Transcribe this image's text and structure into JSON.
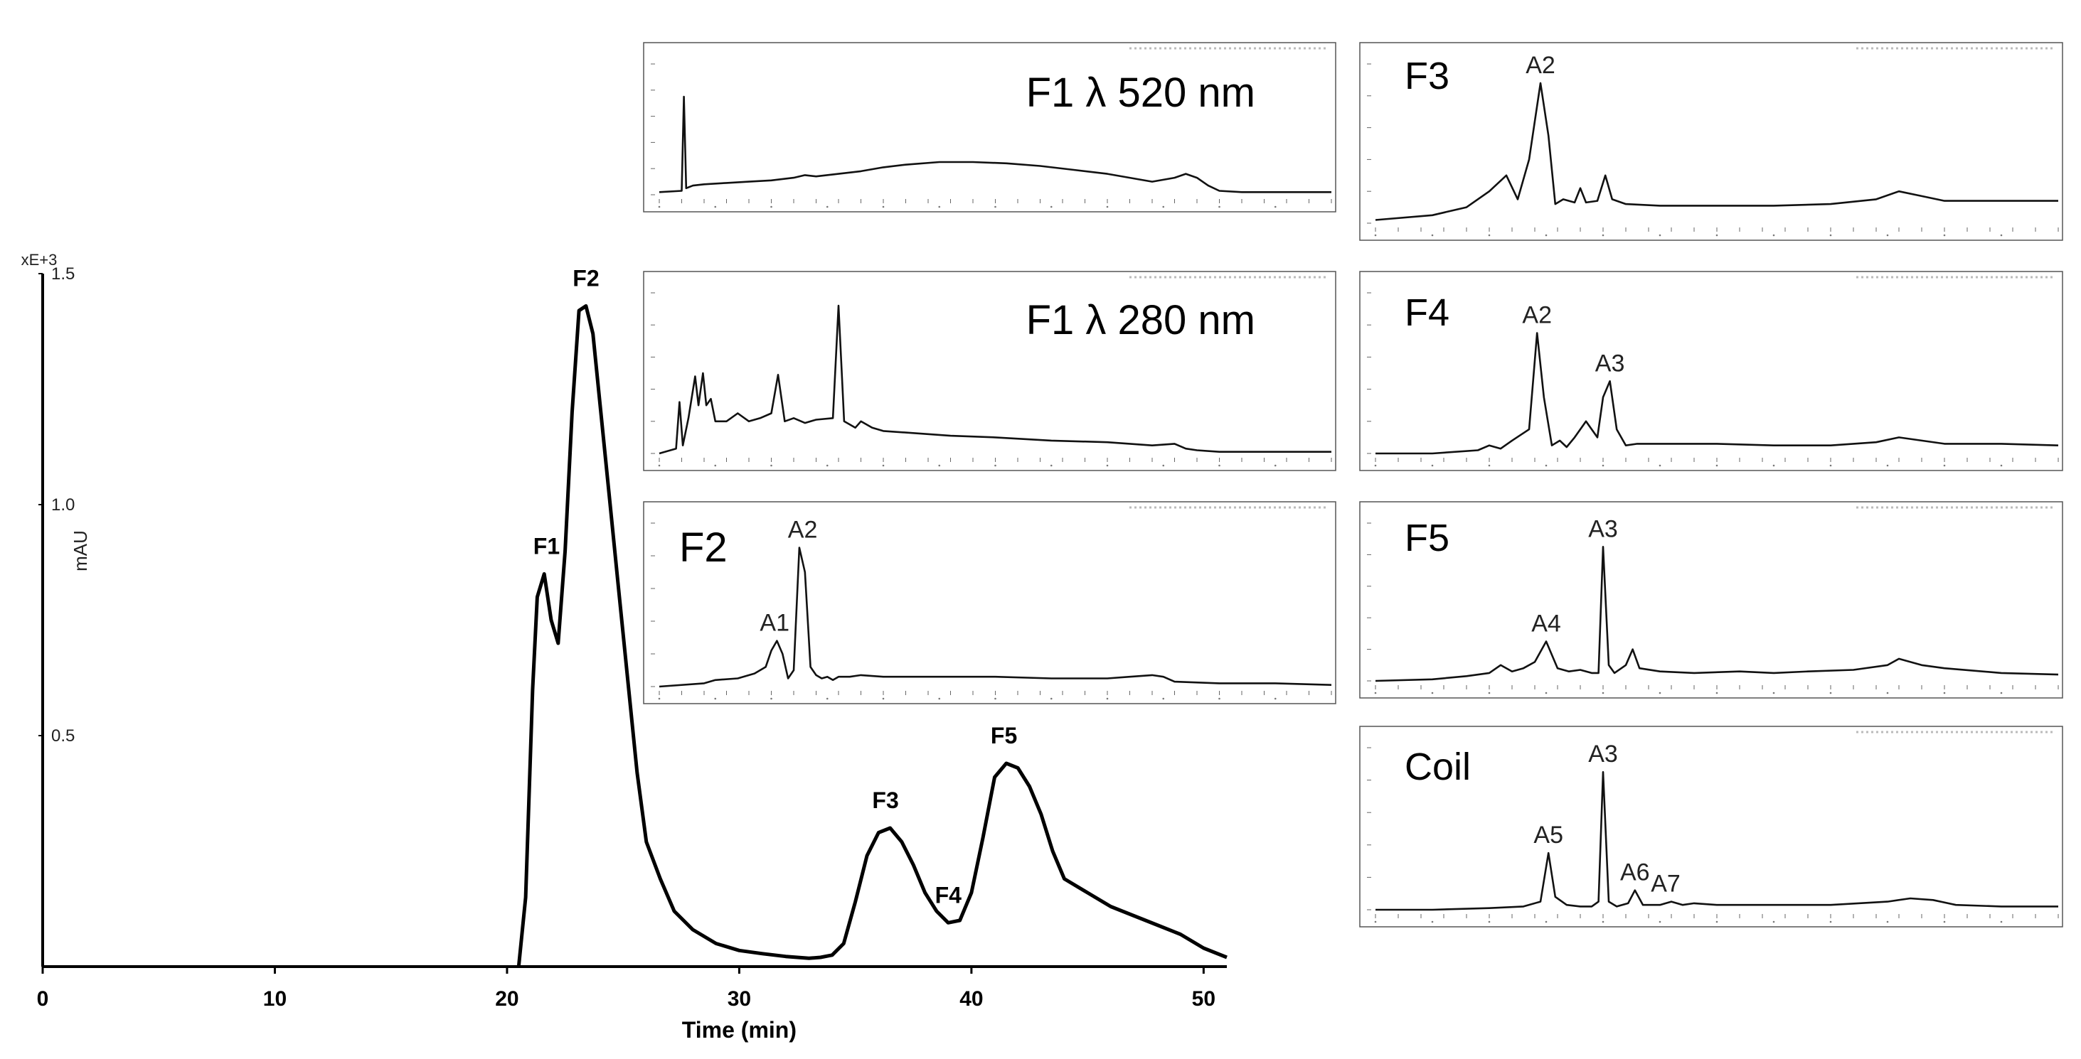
{
  "chart_data": [
    {
      "type": "line",
      "id": "main",
      "title": "",
      "xlabel": "Time (min)",
      "ylabel": "mAU",
      "y_multiplier_label": "xE+3",
      "xlim": [
        0,
        51
      ],
      "ylim": [
        0,
        1.5
      ],
      "x_ticks": [
        0,
        10,
        20,
        30,
        40,
        50
      ],
      "y_ticks": [
        0.5,
        1.0,
        1.5
      ],
      "y_tick_labels": [
        "0.5",
        "1.0",
        "1.5"
      ],
      "series": [
        {
          "name": "trace",
          "x": [
            20.5,
            20.8,
            21.1,
            21.3,
            21.6,
            21.9,
            22.2,
            22.5,
            22.8,
            23.1,
            23.4,
            23.7,
            24.0,
            24.4,
            24.8,
            25.2,
            25.6,
            26.0,
            26.6,
            27.2,
            28.0,
            29.0,
            30.0,
            31.0,
            32.0,
            33.0,
            33.5,
            34.0,
            34.5,
            35.0,
            35.5,
            36.0,
            36.5,
            37.0,
            37.5,
            38.0,
            38.5,
            39.0,
            39.5,
            40.0,
            40.5,
            41.0,
            41.5,
            42.0,
            42.5,
            43.0,
            43.5,
            44.0,
            45.0,
            46.0,
            47.0,
            48.0,
            49.0,
            50.0,
            51.0
          ],
          "y": [
            0.0,
            0.15,
            0.6,
            0.8,
            0.85,
            0.75,
            0.7,
            0.9,
            1.2,
            1.42,
            1.43,
            1.37,
            1.22,
            1.02,
            0.82,
            0.62,
            0.42,
            0.27,
            0.19,
            0.12,
            0.08,
            0.05,
            0.035,
            0.028,
            0.022,
            0.018,
            0.02,
            0.025,
            0.05,
            0.14,
            0.24,
            0.29,
            0.3,
            0.27,
            0.22,
            0.16,
            0.12,
            0.095,
            0.1,
            0.16,
            0.28,
            0.41,
            0.44,
            0.43,
            0.39,
            0.33,
            0.25,
            0.19,
            0.16,
            0.13,
            0.11,
            0.09,
            0.07,
            0.04,
            0.02
          ]
        }
      ],
      "annotations": [
        {
          "text": "F1",
          "x": 21.7,
          "y": 0.85
        },
        {
          "text": "F2",
          "x": 23.4,
          "y": 1.43
        },
        {
          "text": "F3",
          "x": 36.3,
          "y": 0.3
        },
        {
          "text": "F4",
          "x": 39.0,
          "y": 0.095
        },
        {
          "text": "F5",
          "x": 41.4,
          "y": 0.44
        }
      ]
    },
    {
      "type": "line",
      "id": "f1_520",
      "title": "F1 λ 520 nm",
      "xlim": [
        0,
        60
      ],
      "ylim": [
        0,
        1
      ],
      "series": [
        {
          "name": "trace",
          "x": [
            0,
            2,
            2.2,
            2.4,
            3,
            4,
            6,
            8,
            10,
            12,
            13,
            14,
            16,
            18,
            20,
            22,
            25,
            28,
            31,
            34,
            37,
            40,
            42,
            44,
            46,
            47,
            48,
            49,
            50,
            52,
            55,
            60
          ],
          "y": [
            0.02,
            0.03,
            0.75,
            0.05,
            0.07,
            0.08,
            0.09,
            0.1,
            0.11,
            0.13,
            0.15,
            0.14,
            0.16,
            0.18,
            0.21,
            0.23,
            0.25,
            0.25,
            0.24,
            0.22,
            0.19,
            0.16,
            0.13,
            0.1,
            0.13,
            0.16,
            0.13,
            0.07,
            0.03,
            0.02,
            0.02,
            0.02
          ]
        }
      ],
      "annotations": []
    },
    {
      "type": "line",
      "id": "f1_280",
      "title": "F1 λ 280 nm",
      "xlim": [
        0,
        60
      ],
      "ylim": [
        0,
        1
      ],
      "series": [
        {
          "name": "trace",
          "x": [
            0,
            1.5,
            1.8,
            2.1,
            2.6,
            3.2,
            3.5,
            3.9,
            4.2,
            4.6,
            5.0,
            6.0,
            7.0,
            8.0,
            9.0,
            10.0,
            10.6,
            11.2,
            12.0,
            13.0,
            14.0,
            15.5,
            16.0,
            16.5,
            17.0,
            17.5,
            18.0,
            19.0,
            20.0,
            22.0,
            26.0,
            30.0,
            35.0,
            40.0,
            44.0,
            46.0,
            47.0,
            48.0,
            50.0,
            55.0,
            60.0
          ],
          "y": [
            0.0,
            0.03,
            0.32,
            0.05,
            0.22,
            0.48,
            0.3,
            0.5,
            0.3,
            0.34,
            0.2,
            0.2,
            0.25,
            0.2,
            0.22,
            0.25,
            0.49,
            0.2,
            0.22,
            0.19,
            0.21,
            0.22,
            0.92,
            0.2,
            0.18,
            0.16,
            0.2,
            0.16,
            0.14,
            0.13,
            0.11,
            0.1,
            0.08,
            0.07,
            0.05,
            0.06,
            0.03,
            0.02,
            0.01,
            0.01,
            0.01
          ]
        }
      ],
      "annotations": []
    },
    {
      "type": "line",
      "id": "f2",
      "title": "F2",
      "xlim": [
        0,
        60
      ],
      "ylim": [
        0,
        1
      ],
      "series": [
        {
          "name": "trace",
          "x": [
            0,
            4,
            5,
            7,
            8.5,
            9.5,
            10.0,
            10.5,
            11.0,
            11.5,
            12.0,
            12.5,
            13.0,
            13.5,
            14.0,
            14.5,
            15.0,
            15.5,
            16.0,
            17.0,
            18.0,
            20.0,
            25.0,
            30.0,
            35.0,
            40.0,
            42.0,
            44.0,
            45.0,
            46.0,
            50.0,
            55.0,
            60.0
          ],
          "y": [
            0.0,
            0.02,
            0.04,
            0.05,
            0.08,
            0.12,
            0.22,
            0.28,
            0.2,
            0.05,
            0.1,
            0.85,
            0.7,
            0.12,
            0.07,
            0.05,
            0.06,
            0.04,
            0.06,
            0.06,
            0.07,
            0.06,
            0.06,
            0.06,
            0.05,
            0.05,
            0.06,
            0.07,
            0.06,
            0.03,
            0.02,
            0.02,
            0.01
          ]
        }
      ],
      "annotations": [
        {
          "text": "A1",
          "x": 10.3,
          "y": 0.28
        },
        {
          "text": "A2",
          "x": 12.8,
          "y": 0.85
        }
      ]
    },
    {
      "type": "line",
      "id": "f3",
      "title": "F3",
      "xlim": [
        0,
        60
      ],
      "ylim": [
        0,
        1
      ],
      "series": [
        {
          "name": "trace",
          "x": [
            0,
            5,
            8,
            10,
            11.5,
            12.5,
            13.5,
            14.5,
            15.2,
            15.8,
            16.5,
            17.5,
            18.0,
            18.5,
            19.5,
            20.2,
            20.8,
            22,
            25,
            30,
            35,
            40,
            44,
            46,
            48,
            50,
            55,
            60
          ],
          "y": [
            0.02,
            0.05,
            0.1,
            0.2,
            0.3,
            0.15,
            0.4,
            0.88,
            0.55,
            0.12,
            0.15,
            0.13,
            0.22,
            0.13,
            0.14,
            0.3,
            0.15,
            0.12,
            0.11,
            0.11,
            0.11,
            0.12,
            0.15,
            0.2,
            0.17,
            0.14,
            0.14,
            0.14
          ]
        }
      ],
      "annotations": [
        {
          "text": "A2",
          "x": 14.5,
          "y": 0.88
        }
      ]
    },
    {
      "type": "line",
      "id": "f4",
      "title": "F4",
      "xlim": [
        0,
        60
      ],
      "ylim": [
        0,
        1
      ],
      "series": [
        {
          "name": "trace",
          "x": [
            0,
            5,
            9,
            10,
            11,
            12,
            13.5,
            14.2,
            14.8,
            15.5,
            16.2,
            16.8,
            17.5,
            18.5,
            19.5,
            20.0,
            20.6,
            21.2,
            22,
            23,
            25,
            30,
            35,
            40,
            44,
            46,
            48,
            50,
            55,
            60
          ],
          "y": [
            0.0,
            0.0,
            0.02,
            0.05,
            0.03,
            0.08,
            0.15,
            0.75,
            0.35,
            0.05,
            0.08,
            0.04,
            0.1,
            0.2,
            0.1,
            0.35,
            0.45,
            0.15,
            0.05,
            0.06,
            0.06,
            0.06,
            0.05,
            0.05,
            0.07,
            0.1,
            0.08,
            0.06,
            0.06,
            0.05
          ]
        }
      ],
      "annotations": [
        {
          "text": "A2",
          "x": 14.2,
          "y": 0.75
        },
        {
          "text": "A3",
          "x": 20.6,
          "y": 0.45
        }
      ]
    },
    {
      "type": "line",
      "id": "f5",
      "title": "F5",
      "xlim": [
        0,
        60
      ],
      "ylim": [
        0,
        1
      ],
      "series": [
        {
          "name": "trace",
          "x": [
            0,
            5,
            8,
            10,
            11,
            12,
            13,
            14,
            15,
            16,
            17,
            18,
            19,
            19.6,
            20.0,
            20.5,
            21.0,
            22.0,
            22.6,
            23.2,
            25,
            28,
            32,
            35,
            38,
            42,
            45,
            46,
            48,
            50,
            55,
            60
          ],
          "y": [
            0.0,
            0.01,
            0.03,
            0.05,
            0.1,
            0.06,
            0.08,
            0.12,
            0.25,
            0.08,
            0.06,
            0.07,
            0.05,
            0.05,
            0.85,
            0.1,
            0.05,
            0.1,
            0.2,
            0.08,
            0.06,
            0.05,
            0.06,
            0.05,
            0.06,
            0.07,
            0.1,
            0.14,
            0.1,
            0.08,
            0.05,
            0.04
          ]
        }
      ],
      "annotations": [
        {
          "text": "A3",
          "x": 20.0,
          "y": 0.85
        },
        {
          "text": "A4",
          "x": 15.0,
          "y": 0.25
        }
      ]
    },
    {
      "type": "line",
      "id": "coil",
      "title": "Coil",
      "xlim": [
        0,
        60
      ],
      "ylim": [
        0,
        1
      ],
      "series": [
        {
          "name": "trace",
          "x": [
            0,
            5,
            10,
            13,
            14.5,
            15.2,
            15.8,
            16.8,
            18.0,
            19.0,
            19.6,
            20.0,
            20.5,
            21.2,
            22.2,
            22.8,
            23.5,
            25.0,
            26.0,
            27.0,
            28.0,
            30,
            35,
            40,
            45,
            47,
            49,
            51,
            55,
            60
          ],
          "y": [
            0.0,
            0.0,
            0.01,
            0.02,
            0.05,
            0.35,
            0.08,
            0.03,
            0.02,
            0.02,
            0.05,
            0.85,
            0.05,
            0.02,
            0.04,
            0.12,
            0.03,
            0.03,
            0.05,
            0.03,
            0.04,
            0.03,
            0.03,
            0.03,
            0.05,
            0.07,
            0.06,
            0.03,
            0.02,
            0.02
          ]
        }
      ],
      "annotations": [
        {
          "text": "A3",
          "x": 20.0,
          "y": 0.85
        },
        {
          "text": "A5",
          "x": 15.2,
          "y": 0.35
        },
        {
          "text": "A6",
          "x": 22.8,
          "y": 0.12
        },
        {
          "text": "A7",
          "x": 25.5,
          "y": 0.05
        }
      ]
    }
  ]
}
